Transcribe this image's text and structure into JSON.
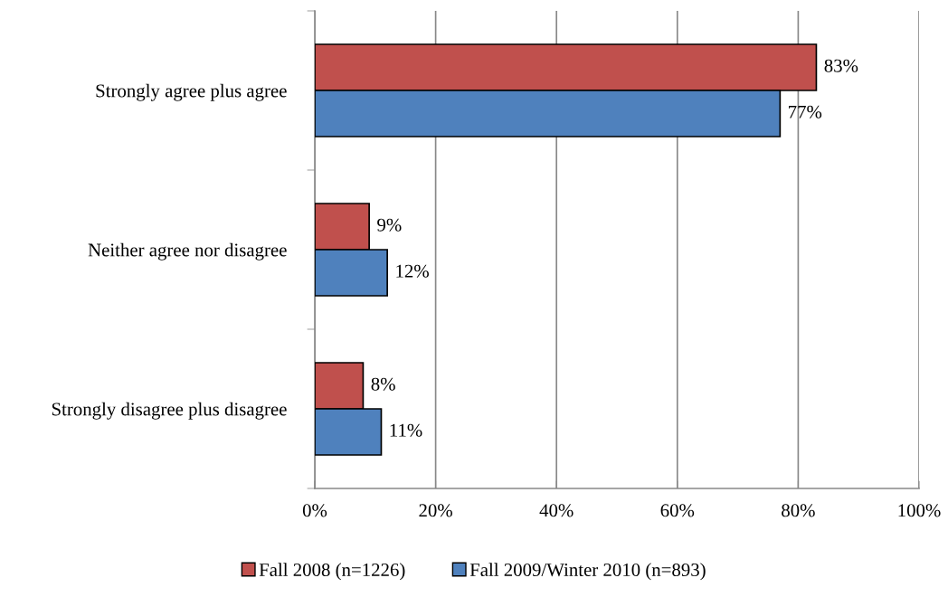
{
  "chart_data": {
    "type": "bar",
    "orientation": "horizontal",
    "categories": [
      "Strongly agree plus agree",
      "Neither agree nor disagree",
      "Strongly disagree plus disagree"
    ],
    "series": [
      {
        "name": "Fall 2008 (n=1226)",
        "color": "#c0504d",
        "values": [
          83,
          9,
          8
        ],
        "value_labels": [
          "83%",
          "9%",
          "8%"
        ]
      },
      {
        "name": "Fall 2009/Winter 2010 (n=893)",
        "color": "#4f81bd",
        "values": [
          77,
          12,
          11
        ],
        "value_labels": [
          "77%",
          "12%",
          "11%"
        ]
      }
    ],
    "xlim": [
      0,
      100
    ],
    "xticks": [
      {
        "value": 0,
        "label": "0%"
      },
      {
        "value": 20,
        "label": "20%"
      },
      {
        "value": 40,
        "label": "40%"
      },
      {
        "value": 60,
        "label": "60%"
      },
      {
        "value": 80,
        "label": "80%"
      },
      {
        "value": 100,
        "label": "100%"
      }
    ],
    "grid": "x",
    "legend": "bottom"
  }
}
